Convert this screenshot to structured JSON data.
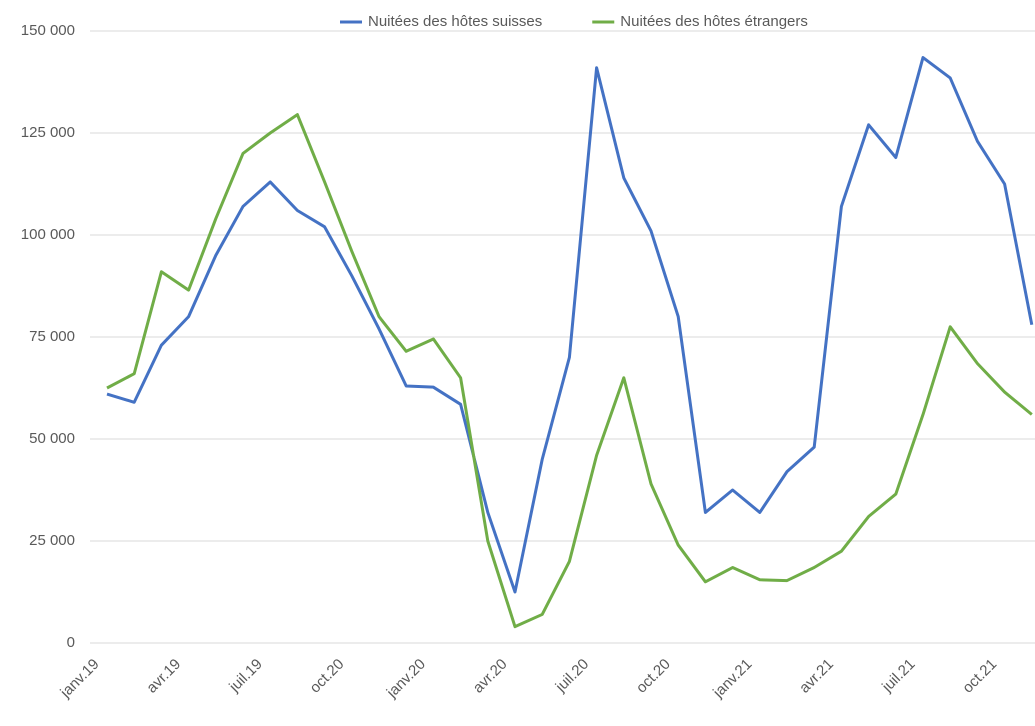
{
  "chart_data": {
    "type": "line",
    "categories": [
      "janv.19",
      null,
      null,
      "avr.19",
      null,
      null,
      "juil.19",
      null,
      null,
      "oct.20",
      null,
      null,
      "janv.20",
      null,
      null,
      "avr.20",
      null,
      null,
      "juil.20",
      null,
      null,
      "oct.20",
      null,
      null,
      "janv.21",
      null,
      null,
      "avr.21",
      null,
      null,
      "juil.21",
      null,
      null,
      "oct.21",
      null
    ],
    "series": [
      {
        "name": "Nuitées des hôtes suisses",
        "color": "#4472c4",
        "values": [
          61000,
          59000,
          73000,
          80000,
          95000,
          107000,
          113000,
          106000,
          102000,
          90000,
          77000,
          63000,
          62700,
          58500,
          32000,
          12500,
          45000,
          70000,
          141000,
          114000,
          101000,
          80000,
          32000,
          37500,
          32000,
          42000,
          48000,
          107000,
          127000,
          119000,
          143500,
          138500,
          123000,
          112500,
          78000
        ]
      },
      {
        "name": "Nuitées des hôtes étrangers",
        "color": "#70ad47",
        "values": [
          62500,
          66000,
          91000,
          86500,
          104000,
          120000,
          125000,
          129500,
          113000,
          96000,
          80000,
          71500,
          74500,
          65000,
          25000,
          4000,
          7000,
          20000,
          46000,
          65000,
          39000,
          24000,
          15000,
          18500,
          15500,
          15300,
          18500,
          22500,
          31000,
          36500,
          56000,
          77500,
          68500,
          61500,
          56000
        ]
      }
    ],
    "ylim": [
      0,
      150000
    ],
    "yticks": [
      0,
      {
        "value": 25000,
        "label": "25 000"
      },
      {
        "value": 50000,
        "label": "50 000"
      },
      {
        "value": 75000,
        "label": "75 000"
      },
      {
        "value": 100000,
        "label": "100 000"
      },
      {
        "value": 125000,
        "label": "125 000"
      },
      {
        "value": 150000,
        "label": "150 000"
      }
    ],
    "grid": true,
    "legend": "top"
  }
}
